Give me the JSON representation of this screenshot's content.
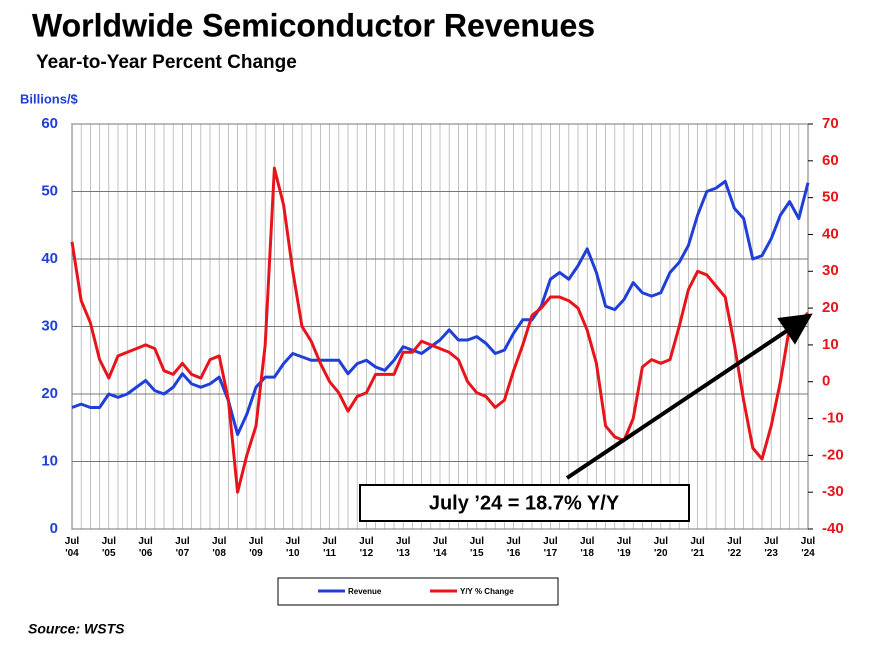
{
  "chart_data": {
    "type": "line",
    "title": "Worldwide Semiconductor Revenues",
    "subtitle": "Year-to-Year Percent Change",
    "y_label": "Billions/$",
    "annotation": "July ’24 = 18.7% Y/Y",
    "source": "Source: WSTS",
    "categories": [
      "Jul '04",
      null,
      null,
      null,
      "Jul '05",
      null,
      null,
      null,
      "Jul '06",
      null,
      null,
      null,
      "Jul '07",
      null,
      null,
      null,
      "Jul '08",
      null,
      null,
      null,
      "Jul '09",
      null,
      null,
      null,
      "Jul '10",
      null,
      null,
      null,
      "Jul '11",
      null,
      null,
      null,
      "Jul '12",
      null,
      null,
      null,
      "Jul '13",
      null,
      null,
      null,
      "Jul '14",
      null,
      null,
      null,
      "Jul '15",
      null,
      null,
      null,
      "Jul '16",
      null,
      null,
      null,
      "Jul '17",
      null,
      null,
      null,
      "Jul '18",
      null,
      null,
      null,
      "Jul '19",
      null,
      null,
      null,
      "Jul '20",
      null,
      null,
      null,
      "Jul '21",
      null,
      null,
      null,
      "Jul '22",
      null,
      null,
      null,
      "Jul '23",
      null,
      null,
      null,
      "Jul '24"
    ],
    "series": [
      {
        "name": "Revenue",
        "color": "#1f3fd8",
        "axis": "y",
        "values": [
          18,
          18.5,
          18,
          18,
          20,
          19.5,
          20,
          21,
          22,
          20.5,
          20,
          21,
          23,
          21.5,
          21,
          21.5,
          22.5,
          19,
          14,
          17,
          21,
          22.5,
          22.5,
          24.5,
          26,
          25.5,
          25,
          25,
          25,
          25,
          23,
          24.5,
          25,
          24,
          23.5,
          25,
          27,
          26.5,
          26,
          27,
          28,
          29.5,
          28,
          28,
          28.5,
          27.5,
          26,
          26.5,
          29,
          31,
          31,
          33,
          37,
          38,
          37,
          39,
          41.5,
          38,
          33,
          32.5,
          34,
          36.5,
          35,
          34.5,
          35,
          38,
          39.5,
          42,
          46.5,
          50,
          50.5,
          51.5,
          47.5,
          46,
          40,
          40.5,
          43,
          46.5,
          48.5,
          46,
          51.3
        ]
      },
      {
        "name": "Y/Y % Change",
        "color": "#e8141b",
        "axis": "y2",
        "values": [
          38,
          22,
          16,
          6,
          1,
          7,
          8,
          9,
          10,
          9,
          3,
          2,
          5,
          2,
          1,
          6,
          7,
          -5,
          -30,
          -20,
          -12,
          10,
          58,
          48,
          30,
          15,
          11,
          5,
          0,
          -3,
          -8,
          -4,
          -3,
          2,
          2,
          2,
          8,
          8,
          11,
          10,
          9,
          8,
          6,
          0,
          -3,
          -4,
          -7,
          -5,
          3,
          10,
          18,
          20,
          23,
          23,
          22,
          20,
          14,
          5,
          -12,
          -15,
          -16,
          -10,
          4,
          6,
          5,
          6,
          15,
          25,
          30,
          29,
          26,
          23,
          10,
          -5,
          -18,
          -21,
          -12,
          0,
          15,
          16,
          18.7
        ]
      }
    ],
    "ylim": [
      0,
      60
    ],
    "yticks": [
      0,
      10,
      20,
      30,
      40,
      50,
      60
    ],
    "y2lim": [
      -40,
      70
    ],
    "y2ticks": [
      -40,
      -30,
      -20,
      -10,
      0,
      10,
      20,
      30,
      40,
      50,
      60,
      70
    ],
    "grid": true
  }
}
